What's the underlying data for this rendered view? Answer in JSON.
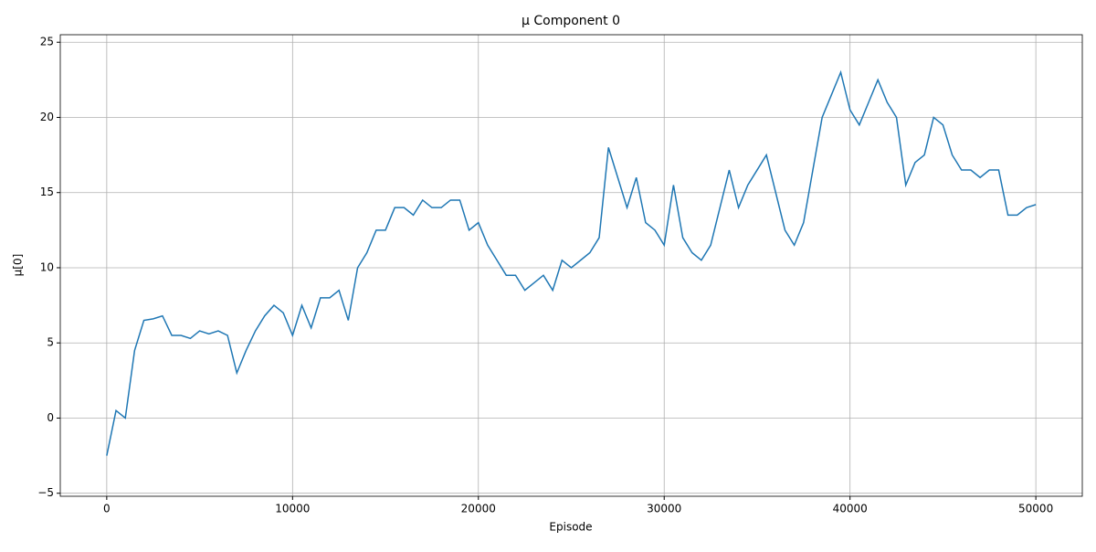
{
  "chart_data": {
    "type": "line",
    "title": "μ Component 0",
    "x_label": "Episode",
    "y_label": "μ[0]",
    "x": [
      0,
      500,
      1000,
      1500,
      2000,
      2500,
      3000,
      3500,
      4000,
      4500,
      5000,
      5500,
      6000,
      6500,
      7000,
      7500,
      8000,
      8500,
      9000,
      9500,
      10000,
      10500,
      11000,
      11500,
      12000,
      12500,
      13000,
      13500,
      14000,
      14500,
      15000,
      15500,
      16000,
      16500,
      17000,
      17500,
      18000,
      18500,
      19000,
      19500,
      20000,
      20500,
      21000,
      21500,
      22000,
      22500,
      23000,
      23500,
      24000,
      24500,
      25000,
      25500,
      26000,
      26500,
      27000,
      27500,
      28000,
      28500,
      29000,
      29500,
      30000,
      30500,
      31000,
      31500,
      32000,
      32500,
      33000,
      33500,
      34000,
      34500,
      35000,
      35500,
      36000,
      36500,
      37000,
      37500,
      38000,
      38500,
      39000,
      39500,
      40000,
      40500,
      41000,
      41500,
      42000,
      42500,
      43000,
      43500,
      44000,
      44500,
      45000,
      45500,
      46000,
      46500,
      47000,
      47500,
      48000,
      48500,
      49000,
      49500,
      50000
    ],
    "series": [
      {
        "name": "μ[0]",
        "color": "#1f77b4",
        "values": [
          -2.5,
          0.5,
          0,
          4.5,
          6.5,
          6.6,
          6.8,
          5.5,
          5.5,
          5.3,
          5.8,
          5.6,
          5.8,
          5.5,
          3.0,
          4.5,
          5.8,
          6.8,
          7.5,
          7,
          5.5,
          7.5,
          6,
          8,
          8,
          8.5,
          6.5,
          10,
          11,
          12.5,
          12.5,
          14,
          14,
          13.5,
          14.5,
          14,
          14,
          14.5,
          14.5,
          12.5,
          13,
          11.5,
          10.5,
          9.5,
          9.5,
          8.5,
          9,
          9.5,
          8.5,
          10.5,
          10,
          10.5,
          11,
          12,
          18,
          16,
          14,
          16,
          13,
          12.5,
          11.5,
          15.5,
          12,
          11,
          10.5,
          11.5,
          14,
          16.5,
          14,
          15.5,
          16.5,
          17.5,
          15,
          12.5,
          11.5,
          13,
          16.5,
          20,
          21.5,
          23,
          20.5,
          19.5,
          21,
          22.5,
          21,
          20,
          15.5,
          17,
          17.5,
          20,
          19.5,
          17.5,
          16.5,
          16.5,
          16,
          16.5,
          16.5,
          13.5,
          13.5,
          14,
          14.2
        ]
      }
    ],
    "xlim": [
      -2500,
      52500
    ],
    "ylim": [
      -5.2,
      25.5
    ],
    "xticks": [
      0,
      10000,
      20000,
      30000,
      40000,
      50000
    ],
    "yticks": [
      {
        "value": -5,
        "label": "−5"
      },
      0,
      5,
      10,
      15,
      20,
      25
    ],
    "grid": true
  }
}
